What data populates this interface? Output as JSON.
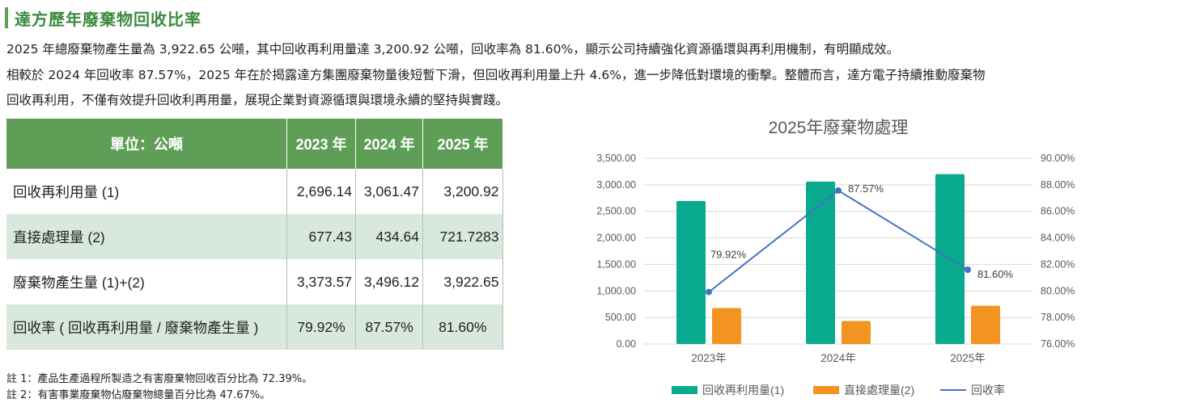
{
  "section": {
    "title": "達方歷年廢棄物回收比率",
    "paragraphs": [
      "2025 年總廢棄物產生量為 3,922.65 公噸，其中回收再利用量達 3,200.92 公噸，回收率為 81.60%，顯示公司持續強化資源循環與再利用機制，有明顯成效。",
      "相較於 2024 年回收率 87.57%，2025 年在於揭露達方集團廢棄物量後短暫下滑，但回收再利用量上升 4.6%，進一步降低對環境的衝擊。整體而言，達方電子持續推動廢棄物",
      "回收再利用，不僅有效提升回收利再用量，展現企業對資源循環與環境永續的堅持與實踐。"
    ]
  },
  "table": {
    "headers": [
      "單位：公噸",
      "2023 年",
      "2024 年",
      "2025 年"
    ],
    "rows": [
      {
        "label": "回收再利用量 (1)",
        "values": [
          "2,696.14",
          "3,061.47",
          "3,200.92"
        ]
      },
      {
        "label": "直接處理量 (2)",
        "values": [
          "677.43",
          "434.64",
          "721.7283"
        ]
      },
      {
        "label": "廢棄物產生量 (1)+(2)",
        "values": [
          "3,373.57",
          "3,496.12",
          "3,922.65"
        ]
      },
      {
        "label": "回收率 ( 回收再利用量 / 廢棄物產生量 )",
        "values": [
          "79.92%",
          "87.57%",
          "81.60%"
        ]
      }
    ]
  },
  "notes": [
    "註 1：產品生產過程所製造之有害廢棄物回收百分比為 72.39%。",
    "註 2：有害事業廢棄物佔廢棄物總量百分比為 47.67%。"
  ],
  "colors": {
    "title": "#3a8a3f",
    "header_bg": "#5f9e57",
    "row_alt": "#d8e8dd",
    "bar_recycle": "#0aaa8e",
    "bar_direct": "#f39322",
    "line_rate": "#4472c4"
  },
  "chart_data": {
    "type": "bar",
    "title": "2025年廢棄物處理",
    "categories": [
      "2023年",
      "2024年",
      "2025年"
    ],
    "series": [
      {
        "name": "回收再利用量(1)",
        "type": "bar",
        "axis": "left",
        "color": "#0aaa8e",
        "values": [
          2696.14,
          3061.47,
          3200.92
        ]
      },
      {
        "name": "直接處理量(2)",
        "type": "bar",
        "axis": "left",
        "color": "#f39322",
        "values": [
          677.43,
          434.64,
          721.7283
        ]
      },
      {
        "name": "回收率",
        "type": "line",
        "axis": "right",
        "color": "#4472c4",
        "values": [
          79.92,
          87.57,
          81.6
        ]
      }
    ],
    "data_labels": [
      "79.92%",
      "87.57%",
      "81.60%"
    ],
    "y_left": {
      "min": 0,
      "max": 3500,
      "step": 500,
      "tick_labels": [
        "0.00",
        "500.00",
        "1,000.00",
        "1,500.00",
        "2,000.00",
        "2,500.00",
        "3,000.00",
        "3,500.00"
      ]
    },
    "y_right": {
      "min": 76,
      "max": 90,
      "step": 2,
      "tick_labels": [
        "76.00%",
        "78.00%",
        "80.00%",
        "82.00%",
        "84.00%",
        "86.00%",
        "88.00%",
        "90.00%"
      ]
    },
    "grid": true,
    "legend": "bottom"
  }
}
